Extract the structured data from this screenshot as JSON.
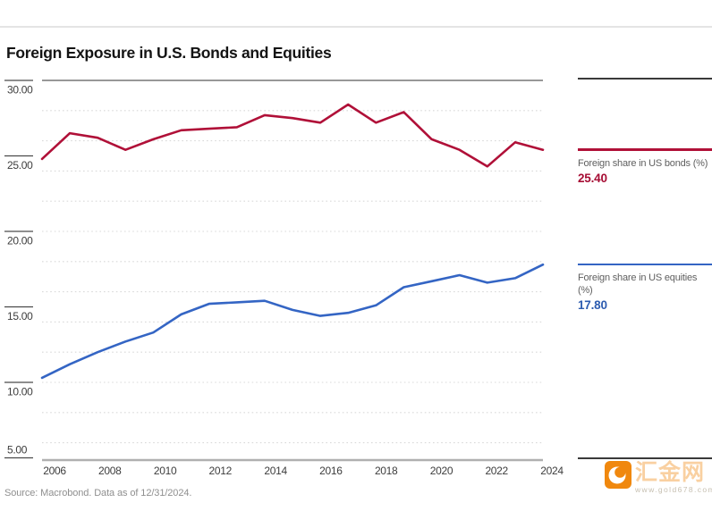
{
  "page": {
    "title": "Foreign Exposure in U.S. Bonds and Equities",
    "source_note": "Source: Macrobond. Data as of 12/31/2024."
  },
  "legend": {
    "bonds": {
      "label": "Foreign share in US bonds (%)",
      "value": "25.40",
      "color": "#b01038",
      "value_color": "#a60d34"
    },
    "equities": {
      "label": "Foreign share in US equities (%)",
      "value": "17.80",
      "color": "#3465c4",
      "value_color": "#2d5cb0"
    }
  },
  "watermark": {
    "name": "汇金网",
    "url": "www.gold678.com",
    "icon_color": "#f0880e"
  },
  "chart_data": {
    "type": "line",
    "title": "Foreign Exposure in U.S. Bonds and Equities",
    "x": [
      2006,
      2007,
      2008,
      2009,
      2010,
      2011,
      2012,
      2013,
      2014,
      2015,
      2016,
      2017,
      2018,
      2019,
      2020,
      2021,
      2022,
      2023,
      2024
    ],
    "series": [
      {
        "name": "Foreign share in US bonds (%)",
        "color": "#b01038",
        "values": [
          24.8,
          26.5,
          26.2,
          25.4,
          26.1,
          26.7,
          26.8,
          26.9,
          27.7,
          27.5,
          27.2,
          28.4,
          27.2,
          27.9,
          26.1,
          25.4,
          24.3,
          25.9,
          25.4
        ],
        "last_value_label": "25.40"
      },
      {
        "name": "Foreign share in US equities (%)",
        "color": "#3465c4",
        "values": [
          10.3,
          11.2,
          12.0,
          12.7,
          13.3,
          14.5,
          15.2,
          15.3,
          15.4,
          14.8,
          14.4,
          14.6,
          15.1,
          16.3,
          16.7,
          17.1,
          16.6,
          16.9,
          17.8
        ],
        "last_value_label": "17.80"
      }
    ],
    "ylim": [
      4.85,
      30.0
    ],
    "yticks": [
      {
        "v": 30,
        "label": "30.00"
      },
      {
        "v": 25,
        "label": "25.00"
      },
      {
        "v": 20,
        "label": "20.00"
      },
      {
        "v": 15,
        "label": "15.00"
      },
      {
        "v": 10,
        "label": "10.00"
      },
      {
        "v": 5,
        "label": "5.00"
      }
    ],
    "xticks": [
      {
        "v": 2006,
        "label": "2006"
      },
      {
        "v": 2008,
        "label": "2008"
      },
      {
        "v": 2010,
        "label": "2010"
      },
      {
        "v": 2012,
        "label": "2012"
      },
      {
        "v": 2014,
        "label": "2014"
      },
      {
        "v": 2016,
        "label": "2016"
      },
      {
        "v": 2018,
        "label": "2018"
      },
      {
        "v": 2020,
        "label": "2020"
      },
      {
        "v": 2022,
        "label": "2022"
      },
      {
        "v": 2024,
        "label": "2024"
      }
    ],
    "gridlines": [
      28,
      26,
      24,
      22,
      20,
      18,
      16,
      14,
      12,
      10,
      8,
      6
    ],
    "grid": "dotted horizontal",
    "legend_position": "right"
  }
}
